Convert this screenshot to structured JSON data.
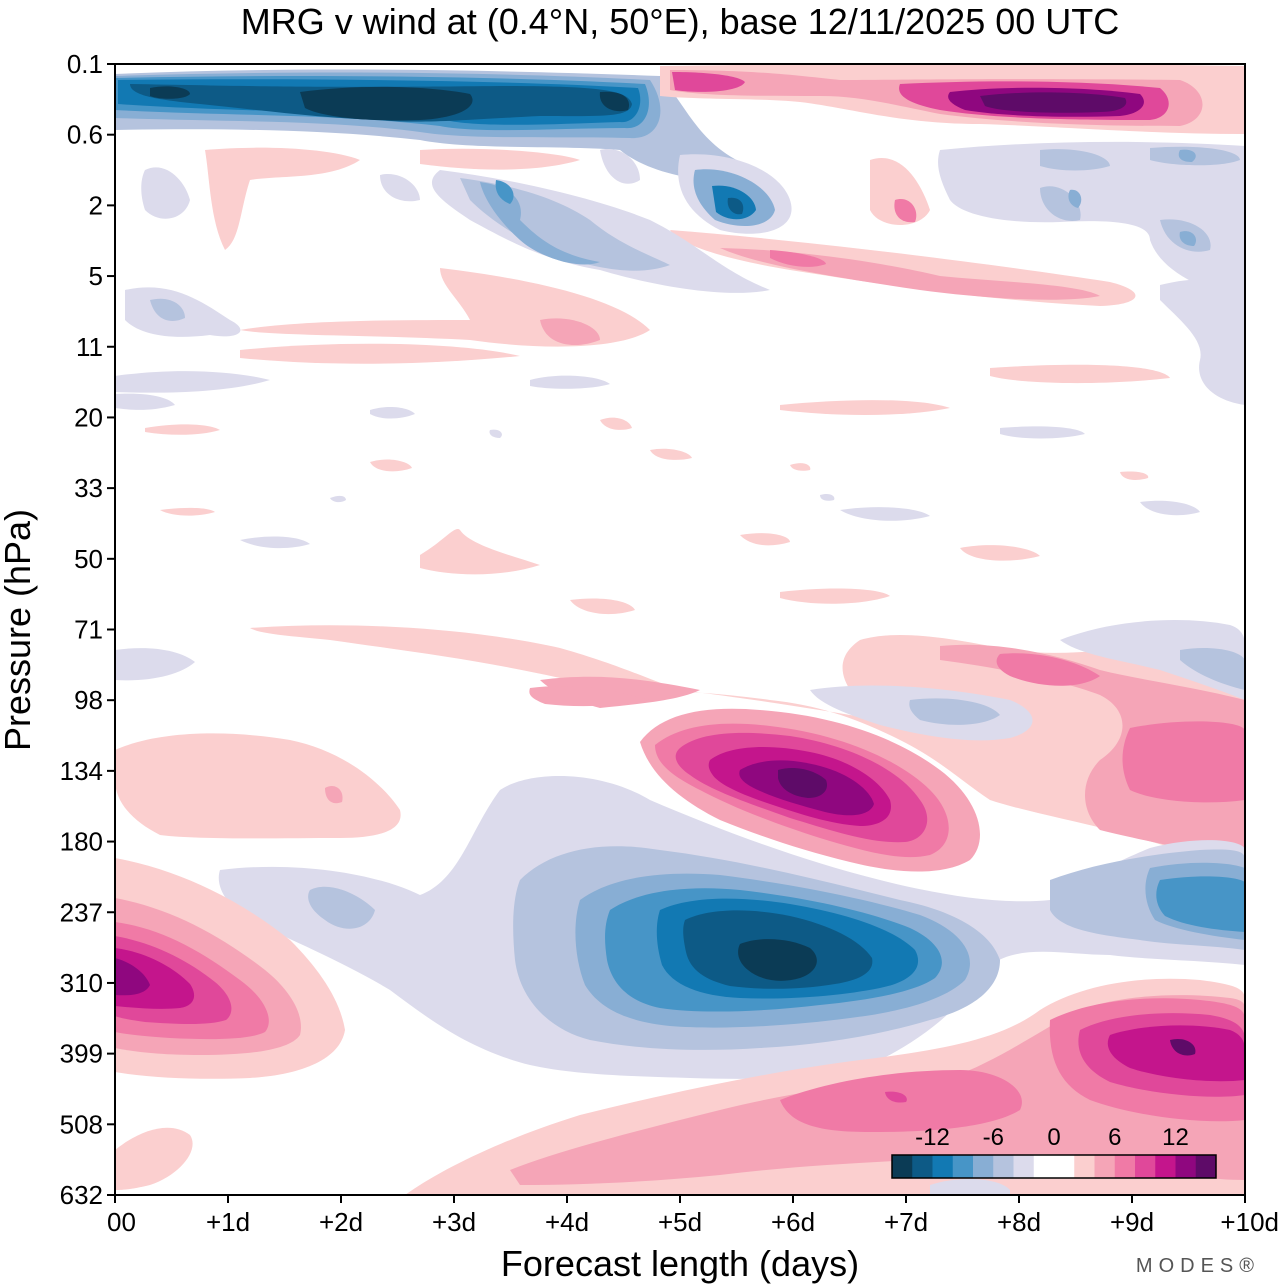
{
  "chart_data": {
    "type": "heatmap",
    "title": "MRG v wind at (0.4°N, 50°E),  base 12/11/2025  00 UTC",
    "xlabel": "Forecast length (days)",
    "ylabel": "Pressure (hPa)",
    "x_ticks": [
      "00",
      "+1d",
      "+2d",
      "+3d",
      "+4d",
      "+5d",
      "+6d",
      "+7d",
      "+8d",
      "+9d",
      "+10d"
    ],
    "xlim": [
      0,
      10
    ],
    "y_ticks": [
      "0.1",
      "0.6",
      "2",
      "5",
      "11",
      "20",
      "33",
      "50",
      "71",
      "98",
      "134",
      "180",
      "237",
      "310",
      "399",
      "508",
      "632"
    ],
    "y_scale": "log-like (evenly spaced levels)",
    "colorbar": {
      "tick_labels": [
        "-12",
        "-6",
        "0",
        "6",
        "12"
      ],
      "range": [
        -16,
        16
      ],
      "step": 2,
      "colors": [
        "#0b3b55",
        "#0d5a86",
        "#1279b3",
        "#4795c7",
        "#88aed4",
        "#b5c3de",
        "#dcdbec",
        "#ffffff",
        "#ffffff",
        "#fbcfcf",
        "#f5a5b7",
        "#f07aa6",
        "#e0489a",
        "#c4158c",
        "#8f077f",
        "#5e0b68"
      ]
    },
    "features": [
      {
        "sign": "negative",
        "peak": -14,
        "x_day": 6.0,
        "level": "~290 hPa",
        "note": "main blue minimum, lower troposphere"
      },
      {
        "sign": "positive",
        "peak": 14,
        "x_day": 6.0,
        "level": "~130 hPa",
        "note": "purple maximum near 134 hPa"
      },
      {
        "sign": "positive",
        "peak": 10,
        "x_day": 0.0,
        "level": "~310 hPa"
      },
      {
        "sign": "positive",
        "peak": 12,
        "x_day": 9.5,
        "level": "~390 hPa"
      },
      {
        "sign": "negative",
        "peak": -8,
        "x_day": 10.0,
        "level": "~250 hPa"
      },
      {
        "sign": "positive",
        "peak": 8,
        "x_day": 9.8,
        "level": "~140 hPa"
      },
      {
        "sign": "negative",
        "peak": -16,
        "x_day": 2.5,
        "level": "~0.3 hPa"
      },
      {
        "sign": "positive",
        "peak": 16,
        "x_day": 8.0,
        "level": "~0.3 hPa"
      },
      {
        "sign": "negative",
        "peak": -10,
        "x_day": 5.5,
        "level": "~2 hPa"
      }
    ]
  },
  "brand": "MODES®"
}
